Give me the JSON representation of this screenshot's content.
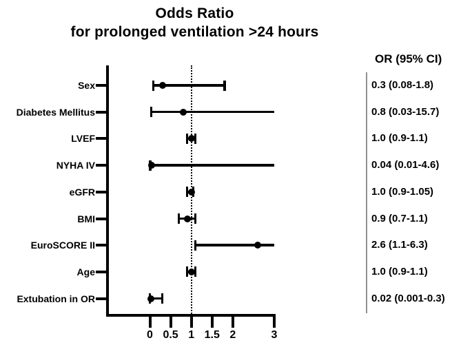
{
  "title": {
    "line1": "Odds Ratio",
    "line2": "for prolonged ventilation >24 hours"
  },
  "or_column_header": "OR (95% CI)",
  "colors": {
    "foreground": "#000000",
    "separator": "#909090",
    "background": "#ffffff"
  },
  "chart_data": {
    "type": "forest",
    "title": "Odds Ratio for prolonged ventilation >24 hours",
    "xlabel": "",
    "ylabel": "",
    "xlim": [
      0,
      3
    ],
    "x_ticks": [
      0,
      0.5,
      1,
      1.5,
      2,
      3
    ],
    "x_tick_labels": [
      "0",
      "0.5",
      "1",
      "1.5",
      "2",
      "3"
    ],
    "reference_line_x": 1,
    "grid": false,
    "rows": [
      {
        "label": "Sex",
        "or": 0.3,
        "ci_low": 0.08,
        "ci_high": 1.8,
        "display": "0.3 (0.08-1.8)"
      },
      {
        "label": "Diabetes Mellitus",
        "or": 0.8,
        "ci_low": 0.03,
        "ci_high": 15.7,
        "display": "0.8 (0.03-15.7)"
      },
      {
        "label": "LVEF",
        "or": 1.0,
        "ci_low": 0.9,
        "ci_high": 1.1,
        "display": "1.0 (0.9-1.1)"
      },
      {
        "label": "NYHA IV",
        "or": 0.04,
        "ci_low": 0.01,
        "ci_high": 4.6,
        "display": "0.04 (0.01-4.6)"
      },
      {
        "label": "eGFR",
        "or": 1.0,
        "ci_low": 0.9,
        "ci_high": 1.05,
        "display": "1.0 (0.9-1.05)"
      },
      {
        "label": "BMI",
        "or": 0.9,
        "ci_low": 0.7,
        "ci_high": 1.1,
        "display": "0.9 (0.7-1.1)"
      },
      {
        "label": "EuroSCORE II",
        "or": 2.6,
        "ci_low": 1.1,
        "ci_high": 6.3,
        "display": "2.6 (1.1-6.3)"
      },
      {
        "label": "Age",
        "or": 1.0,
        "ci_low": 0.9,
        "ci_high": 1.1,
        "display": "1.0 (0.9-1.1)"
      },
      {
        "label": "Extubation in OR",
        "or": 0.02,
        "ci_low": 0.001,
        "ci_high": 0.3,
        "display": "0.02 (0.001-0.3)"
      }
    ]
  }
}
